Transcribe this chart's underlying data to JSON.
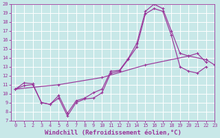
{
  "bg_color": "#c8e8e8",
  "line_color": "#993399",
  "grid_color": "#ffffff",
  "xlim": [
    -0.5,
    23
  ],
  "ylim": [
    7,
    20
  ],
  "xlabel": "Windchill (Refroidissement éolien,°C)",
  "xlabel_fontsize": 6.5,
  "xticks": [
    0,
    1,
    2,
    3,
    4,
    5,
    6,
    7,
    8,
    9,
    10,
    11,
    12,
    13,
    14,
    15,
    16,
    17,
    18,
    19,
    20,
    21,
    22,
    23
  ],
  "yticks": [
    7,
    8,
    9,
    10,
    11,
    12,
    13,
    14,
    15,
    16,
    17,
    18,
    19,
    20
  ],
  "series": [
    {
      "x": [
        0,
        1,
        2,
        3,
        4,
        5,
        6,
        7,
        8,
        9,
        10,
        11,
        12,
        13,
        14,
        15,
        16,
        17,
        18,
        19,
        20,
        21,
        22
      ],
      "y": [
        10.5,
        11.2,
        11.1,
        9.0,
        8.8,
        9.8,
        7.8,
        9.2,
        9.5,
        10.1,
        10.5,
        12.5,
        12.6,
        13.9,
        15.6,
        19.2,
        20.0,
        19.5,
        17.0,
        14.5,
        14.2,
        14.5,
        13.5
      ]
    },
    {
      "x": [
        0,
        1,
        2,
        3,
        4,
        5,
        6,
        7,
        8,
        9,
        10,
        11,
        12,
        13,
        14,
        15,
        16,
        17,
        18,
        19,
        20,
        21,
        22
      ],
      "y": [
        10.5,
        10.9,
        11.0,
        9.0,
        8.8,
        9.5,
        7.5,
        9.0,
        9.4,
        9.5,
        10.1,
        12.3,
        12.5,
        13.8,
        15.2,
        18.9,
        19.5,
        19.2,
        16.5,
        13.0,
        12.5,
        12.3,
        13.0
      ]
    },
    {
      "x": [
        0,
        5,
        10,
        15,
        20,
        22,
        23
      ],
      "y": [
        10.5,
        11.0,
        11.8,
        13.2,
        14.2,
        13.8,
        13.2
      ]
    }
  ]
}
